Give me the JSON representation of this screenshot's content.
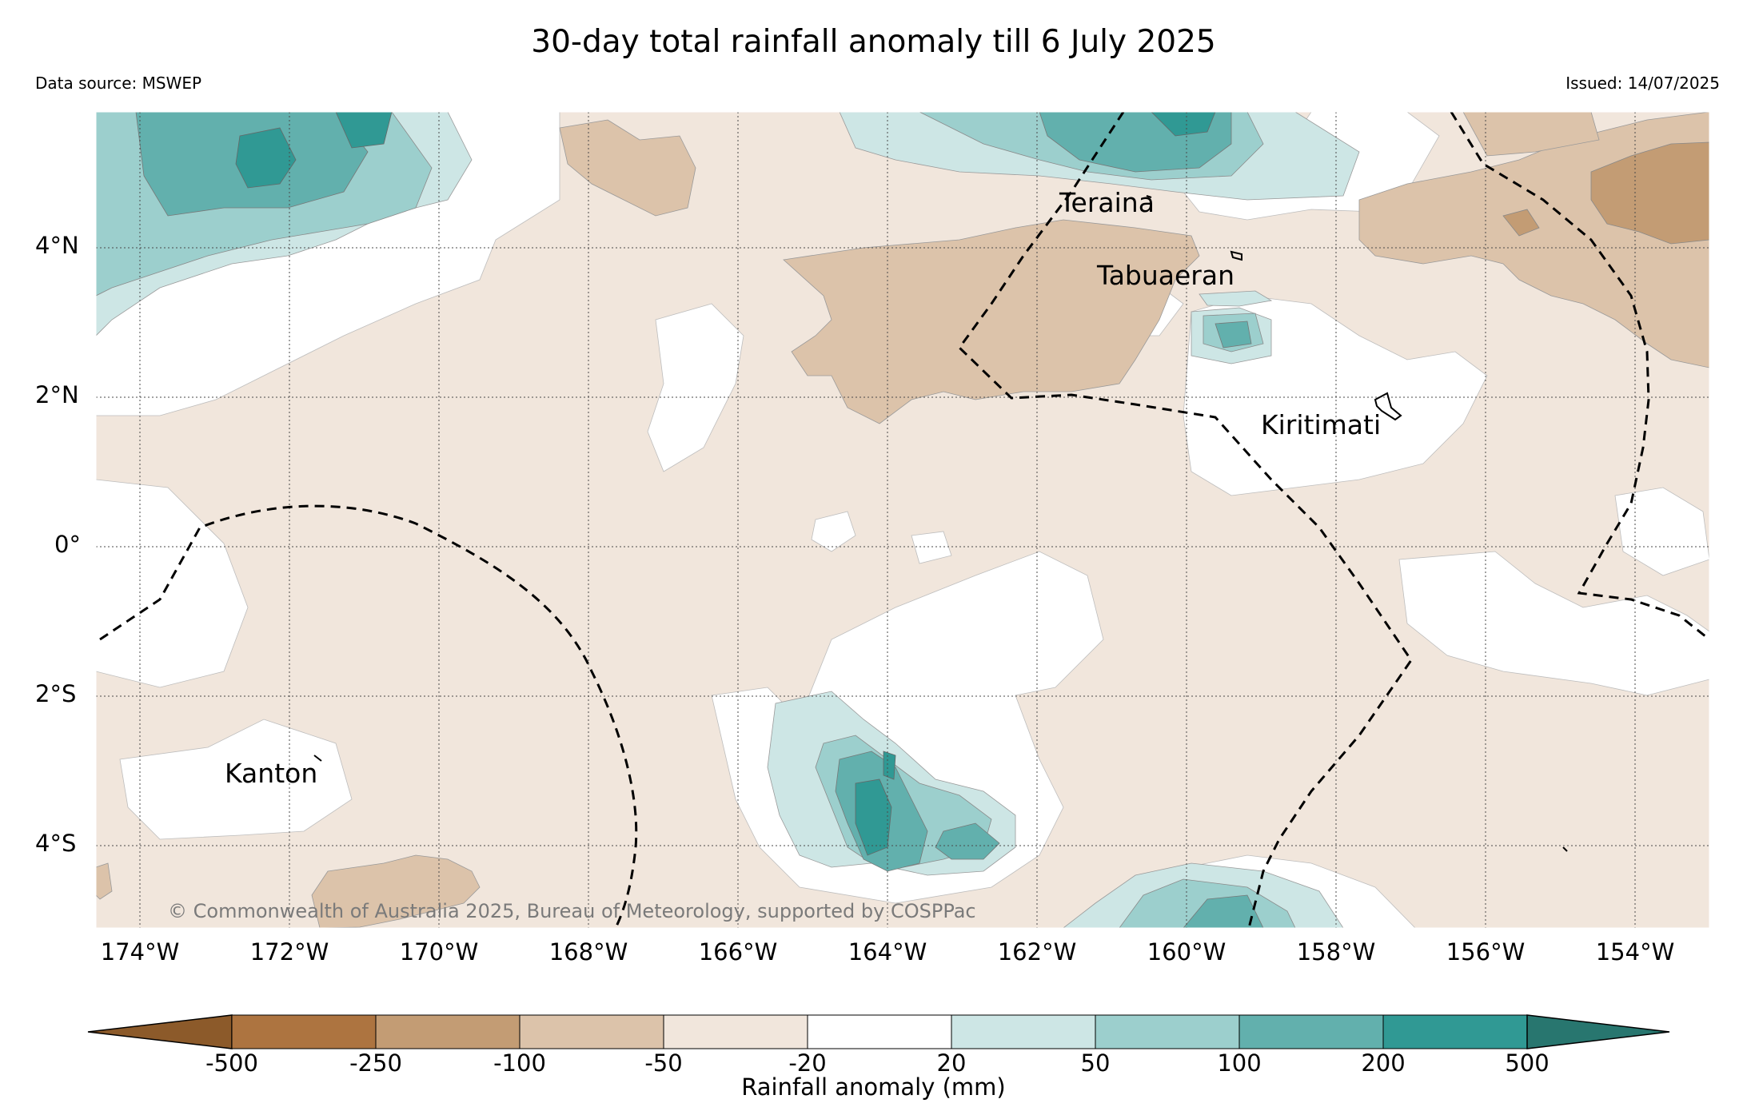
{
  "header": {
    "title": "30-day total rainfall anomaly till 6 July 2025",
    "source": "Data source: MSWEP",
    "issued": "Issued: 14/07/2025"
  },
  "map": {
    "lat_labels": [
      "4°N",
      "2°N",
      "0°",
      "2°S",
      "4°S"
    ],
    "lon_labels": [
      "174°W",
      "172°W",
      "170°W",
      "168°W",
      "166°W",
      "164°W",
      "162°W",
      "160°W",
      "158°W",
      "156°W",
      "154°W"
    ],
    "places": {
      "teraina": "Teraina",
      "tabuaeran": "Tabuaeran",
      "kiritimati": "Kiritimati",
      "kanton": "Kanton"
    },
    "copyright": "© Commonwealth of Australia 2025, Bureau of Meteorology, supported by COSPPac"
  },
  "colorbar": {
    "label": "Rainfall anomaly (mm)",
    "ticks": [
      "-500",
      "-250",
      "-100",
      "-50",
      "-20",
      "20",
      "50",
      "100",
      "200",
      "500"
    ],
    "colors": [
      "#8c5a2a",
      "#ad7440",
      "#c39c74",
      "#dcc3aa",
      "#f1e6dc",
      "#ffffff",
      "#cde6e5",
      "#9ccfcd",
      "#62b0ad",
      "#309994",
      "#28766f"
    ]
  }
}
